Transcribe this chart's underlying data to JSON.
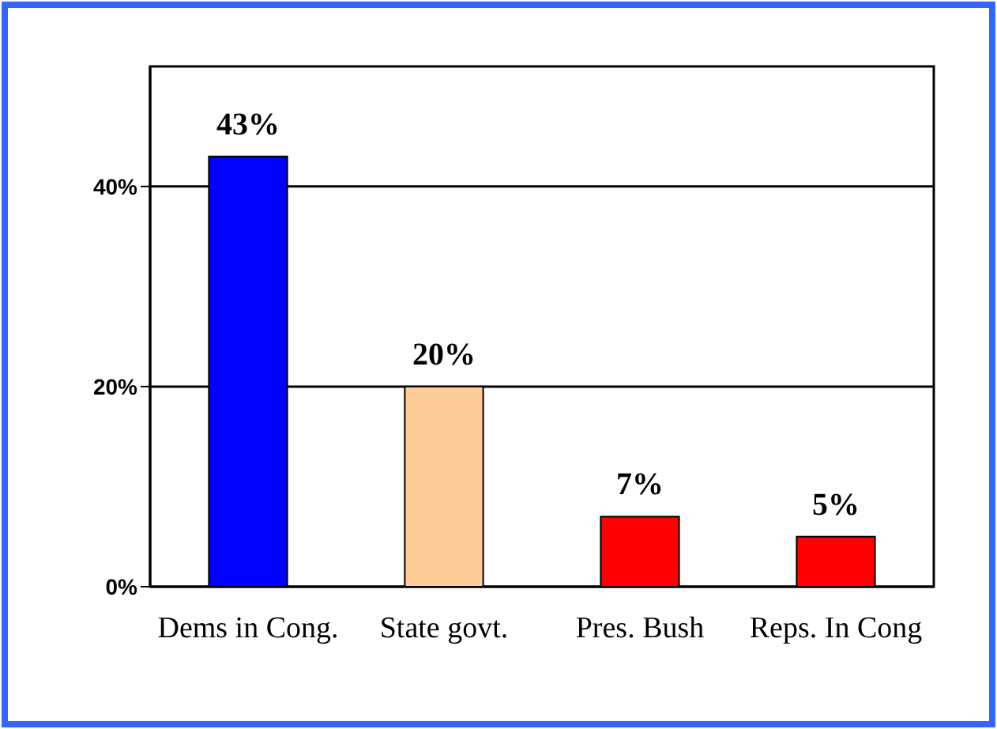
{
  "chart_data": {
    "type": "bar",
    "categories": [
      "Dems in Cong.",
      "State govt.",
      "Pres. Bush",
      "Reps. In Cong"
    ],
    "values": [
      43,
      20,
      7,
      5
    ],
    "colors": [
      "#0000ff",
      "#ffcc99",
      "#ff0000",
      "#ff0000"
    ],
    "value_labels": [
      "43%",
      "20%",
      "7%",
      "5%"
    ],
    "ylim": [
      0,
      52
    ],
    "yticks": [
      {
        "value": 0,
        "label": "0%"
      },
      {
        "value": 20,
        "label": "20%"
      },
      {
        "value": 40,
        "label": "40%"
      }
    ],
    "grid": "y"
  }
}
